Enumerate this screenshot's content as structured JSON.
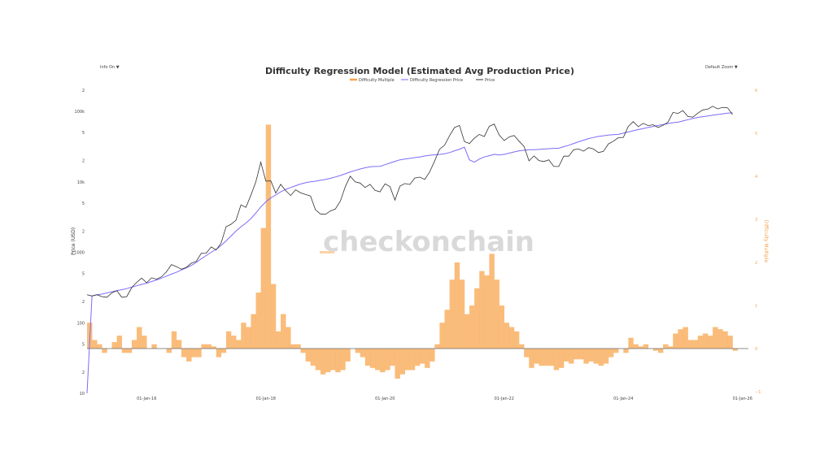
{
  "controls": {
    "info_label": "Info On",
    "info_caret": "▼",
    "zoom_label": "Default Zoom",
    "zoom_caret": "▼"
  },
  "watermark": "checkonchain",
  "chart_data": {
    "type": "line",
    "title": "Difficulty Regression Model (Estimated Avg Production Price)",
    "legend": [
      {
        "name": "Difficulty Multiple",
        "color": "#f7a24b"
      },
      {
        "name": "Difficulty Regression Price",
        "color": "#7b6cf6"
      },
      {
        "name": "Price",
        "color": "#333333"
      }
    ],
    "legend_position": "top-center",
    "ylabel": "Price (USD)",
    "y2label": "Difficulty Multiple",
    "yscale": "log",
    "ylim": [
      10,
      220000
    ],
    "y2lim": [
      -1,
      6
    ],
    "grid": false,
    "y_ticks": [
      {
        "v": 200000,
        "t": "2"
      },
      {
        "v": 100000,
        "t": "100k"
      },
      {
        "v": 50000,
        "t": "5"
      },
      {
        "v": 20000,
        "t": "2"
      },
      {
        "v": 10000,
        "t": "10k"
      },
      {
        "v": 5000,
        "t": "5"
      },
      {
        "v": 2000,
        "t": "2"
      },
      {
        "v": 1000,
        "t": "1000"
      },
      {
        "v": 500,
        "t": "5"
      },
      {
        "v": 200,
        "t": "2"
      },
      {
        "v": 100,
        "t": "100"
      },
      {
        "v": 50,
        "t": "5"
      },
      {
        "v": 20,
        "t": "2"
      },
      {
        "v": 10,
        "t": "10"
      }
    ],
    "y2_ticks": [
      {
        "v": 6,
        "t": "6"
      },
      {
        "v": 5,
        "t": "5"
      },
      {
        "v": 4,
        "t": "4"
      },
      {
        "v": 3,
        "t": "3"
      },
      {
        "v": 2,
        "t": "2"
      },
      {
        "v": 1,
        "t": "1"
      },
      {
        "v": 0,
        "t": "0"
      },
      {
        "v": -1,
        "t": "−1"
      }
    ],
    "x_ticks": [
      {
        "m": 12,
        "t": "01-Jan-16"
      },
      {
        "m": 36,
        "t": "01-Jan-18"
      },
      {
        "m": 60,
        "t": "01-Jan-20"
      },
      {
        "m": 84,
        "t": "01-Jan-22"
      },
      {
        "m": 108,
        "t": "01-Jan-24"
      },
      {
        "m": 132,
        "t": "01-Jan-26"
      }
    ],
    "x_start": "2015-01",
    "x_step": "month",
    "price": [
      250,
      240,
      250,
      235,
      230,
      265,
      285,
      230,
      235,
      315,
      375,
      430,
      370,
      435,
      415,
      450,
      530,
      670,
      625,
      575,
      610,
      700,
      745,
      965,
      970,
      1190,
      1080,
      1350,
      2300,
      2500,
      2850,
      4700,
      4340,
      6450,
      10000,
      19000,
      10200,
      10300,
      6900,
      9200,
      7500,
      6400,
      7700,
      7000,
      6600,
      6300,
      4000,
      3500,
      3450,
      3850,
      4100,
      5300,
      8500,
      12000,
      10000,
      9600,
      8300,
      9200,
      7550,
      7200,
      9350,
      8550,
      5500,
      8650,
      9450,
      9150,
      11300,
      11650,
      10800,
      13800,
      19700,
      29000,
      33000,
      45000,
      58800,
      63000,
      37300,
      35000,
      41500,
      47100,
      43800,
      61300,
      66000,
      46300,
      38500,
      43200,
      45500,
      37700,
      31800,
      19800,
      23300,
      20000,
      19400,
      20500,
      16500,
      16500,
      23100,
      23100,
      28500,
      29200,
      27200,
      30500,
      29200,
      26000,
      27000,
      34500,
      37700,
      42300,
      42600,
      61200,
      71300,
      60600,
      67500,
      62700,
      64600,
      59000,
      63300,
      70200,
      96400,
      93400,
      102400,
      84400,
      82500,
      94200,
      104600,
      107100,
      118000,
      108200,
      114000,
      112000,
      90000
    ],
    "regression": [
      10,
      240,
      250,
      255,
      265,
      275,
      285,
      295,
      305,
      320,
      335,
      350,
      365,
      385,
      405,
      430,
      460,
      490,
      520,
      560,
      600,
      650,
      720,
      810,
      900,
      1000,
      1100,
      1250,
      1450,
      1700,
      2000,
      2300,
      2600,
      3000,
      3600,
      4400,
      5200,
      5900,
      6500,
      7200,
      7800,
      8300,
      8800,
      9300,
      9700,
      10000,
      10200,
      10500,
      10800,
      11200,
      11700,
      12300,
      13000,
      13800,
      14500,
      15200,
      15800,
      16300,
      16500,
      16600,
      17500,
      18500,
      19500,
      20500,
      21000,
      21500,
      22000,
      22500,
      23200,
      23800,
      24200,
      24500,
      25000,
      26000,
      27500,
      29000,
      31000,
      20500,
      19000,
      21000,
      22500,
      23500,
      24500,
      24000,
      24500,
      25500,
      26500,
      27500,
      28000,
      28500,
      28500,
      28800,
      29200,
      29500,
      29800,
      30000,
      31500,
      33000,
      35000,
      37000,
      39000,
      41000,
      42500,
      44000,
      45000,
      46000,
      46500,
      47000,
      49000,
      51000,
      53000,
      55000,
      57000,
      59000,
      61000,
      63000,
      65000,
      67000,
      69000,
      70000,
      73000,
      76000,
      79000,
      82000,
      84000,
      86000,
      88000,
      90000,
      92000,
      94000,
      95000
    ],
    "difficulty_multiple": [
      0.6,
      0.2,
      0.1,
      -0.1,
      0.0,
      0.15,
      0.3,
      -0.1,
      -0.1,
      0.2,
      0.5,
      0.3,
      0.0,
      0.1,
      0.0,
      0.0,
      -0.1,
      0.4,
      0.2,
      -0.2,
      -0.3,
      -0.2,
      -0.2,
      0.1,
      0.1,
      0.05,
      -0.2,
      -0.1,
      0.4,
      0.3,
      0.2,
      0.6,
      0.5,
      0.8,
      1.3,
      2.8,
      5.2,
      1.5,
      0.4,
      0.8,
      0.5,
      0.1,
      0.1,
      -0.1,
      -0.3,
      -0.4,
      -0.5,
      -0.6,
      -0.55,
      -0.5,
      -0.55,
      -0.5,
      -0.3,
      0.0,
      -0.1,
      -0.2,
      -0.4,
      -0.45,
      -0.5,
      -0.55,
      -0.5,
      -0.4,
      -0.7,
      -0.6,
      -0.5,
      -0.5,
      -0.4,
      -0.35,
      -0.45,
      -0.3,
      0.1,
      0.6,
      0.9,
      1.6,
      2.0,
      1.6,
      0.8,
      1.0,
      1.4,
      1.8,
      1.7,
      2.2,
      1.6,
      1.0,
      0.6,
      0.5,
      0.4,
      0.1,
      -0.2,
      -0.45,
      -0.35,
      -0.4,
      -0.4,
      -0.4,
      -0.5,
      -0.45,
      -0.3,
      -0.35,
      -0.25,
      -0.25,
      -0.35,
      -0.3,
      -0.35,
      -0.4,
      -0.35,
      -0.2,
      -0.1,
      0.0,
      -0.1,
      0.25,
      0.1,
      0.05,
      0.1,
      0.0,
      -0.05,
      -0.1,
      0.1,
      0.05,
      0.35,
      0.45,
      0.5,
      0.2,
      0.2,
      0.3,
      0.35,
      0.3,
      0.5,
      0.45,
      0.4,
      0.3,
      -0.05
    ]
  }
}
